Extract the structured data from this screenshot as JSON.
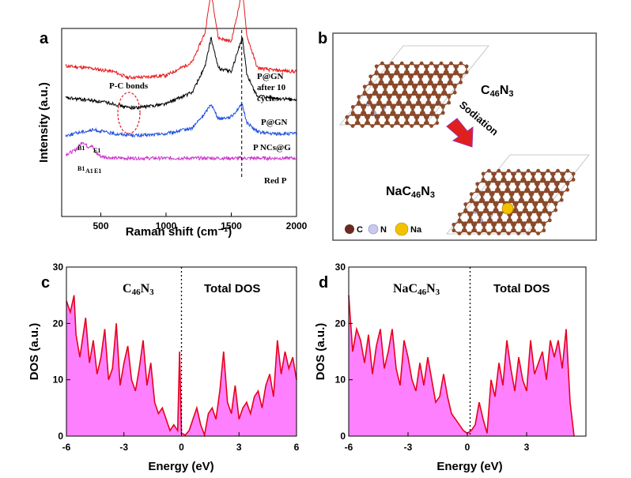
{
  "panels": {
    "a": "a",
    "b": "b",
    "c": "c",
    "d": "d"
  },
  "chart_data": [
    {
      "type": "line",
      "panel": "a",
      "xlabel": "Raman shift (cm⁻¹)",
      "ylabel": "Intensity (a.u.)",
      "xlim": [
        200,
        2000
      ],
      "xticks": [
        500,
        1000,
        1500,
        2000
      ],
      "dashed_vline_x": 1580,
      "annotations": [
        "P-C bonds",
        "B1",
        "E1",
        "B1",
        "A1",
        "E1"
      ],
      "series": [
        {
          "name": "P@GN after 10 cycles",
          "color": "#e31a1c",
          "x": [
            230,
            400,
            600,
            700,
            800,
            1000,
            1200,
            1300,
            1345,
            1400,
            1500,
            1560,
            1585,
            1620,
            1700,
            1800,
            2000
          ],
          "y": [
            0.8,
            0.79,
            0.77,
            0.74,
            0.74,
            0.75,
            0.82,
            0.98,
            1.2,
            0.95,
            0.93,
            1.12,
            1.2,
            0.96,
            0.79,
            0.78,
            0.77
          ]
        },
        {
          "name": "P@GN",
          "color": "#000000",
          "x": [
            230,
            400,
            600,
            700,
            800,
            1000,
            1200,
            1300,
            1345,
            1400,
            1500,
            1560,
            1585,
            1620,
            1700,
            1800,
            2000
          ],
          "y": [
            0.63,
            0.62,
            0.6,
            0.58,
            0.58,
            0.6,
            0.66,
            0.8,
            0.95,
            0.79,
            0.77,
            0.9,
            0.95,
            0.75,
            0.64,
            0.63,
            0.62
          ]
        },
        {
          "name": "P NCs@G",
          "color": "#1f4fe0",
          "x": [
            230,
            350,
            450,
            600,
            800,
            1000,
            1200,
            1300,
            1345,
            1400,
            1500,
            1560,
            1585,
            1620,
            1700,
            1800,
            2000
          ],
          "y": [
            0.43,
            0.45,
            0.46,
            0.44,
            0.43,
            0.44,
            0.47,
            0.55,
            0.6,
            0.52,
            0.53,
            0.58,
            0.59,
            0.5,
            0.45,
            0.44,
            0.44
          ]
        },
        {
          "name": "Red P",
          "color": "#cc33cc",
          "x": [
            230,
            300,
            340,
            360,
            400,
            430,
            460,
            500,
            600,
            800,
            1000,
            1200,
            1500,
            1800,
            2000
          ],
          "y": [
            0.33,
            0.35,
            0.38,
            0.4,
            0.37,
            0.38,
            0.34,
            0.32,
            0.31,
            0.31,
            0.31,
            0.31,
            0.31,
            0.31,
            0.31
          ]
        }
      ]
    },
    {
      "type": "area",
      "panel": "c",
      "legend": [
        "C46N3",
        "Total DOS"
      ],
      "xlabel": "Energy (eV)",
      "ylabel": "DOS (a.u.)",
      "xlim": [
        -6,
        6
      ],
      "ylim": [
        0,
        30
      ],
      "xticks": [
        -6,
        -3,
        0,
        3,
        6
      ],
      "yticks": [
        0,
        10,
        20,
        30
      ],
      "fill_color": "#ff80ff",
      "line_color": "#e8001c",
      "x": [
        -6.0,
        -5.8,
        -5.6,
        -5.5,
        -5.3,
        -5.0,
        -4.8,
        -4.6,
        -4.4,
        -4.2,
        -4.0,
        -3.8,
        -3.6,
        -3.4,
        -3.2,
        -3.0,
        -2.8,
        -2.6,
        -2.4,
        -2.2,
        -2.0,
        -1.8,
        -1.6,
        -1.4,
        -1.2,
        -1.0,
        -0.8,
        -0.6,
        -0.4,
        -0.2,
        -0.1,
        0.0,
        0.2,
        0.4,
        0.6,
        0.8,
        1.0,
        1.2,
        1.4,
        1.6,
        1.8,
        2.0,
        2.2,
        2.4,
        2.6,
        2.8,
        3.0,
        3.2,
        3.4,
        3.6,
        3.8,
        4.0,
        4.2,
        4.4,
        4.6,
        4.8,
        5.0,
        5.2,
        5.4,
        5.6,
        5.8,
        6.0
      ],
      "y": [
        24,
        22,
        25,
        18,
        14,
        21,
        13,
        17,
        11,
        14,
        19,
        10,
        12,
        20,
        9,
        13,
        16,
        10,
        8,
        12,
        17,
        9,
        13,
        6,
        4,
        5,
        3,
        1,
        2,
        1,
        15,
        0.5,
        0.2,
        1,
        3,
        5,
        2,
        0.2,
        4,
        5,
        3,
        8,
        15,
        6,
        4,
        9,
        3,
        5,
        6,
        4,
        7,
        8,
        5,
        9,
        11,
        7,
        17,
        11,
        15,
        12,
        14,
        10
      ]
    },
    {
      "type": "area",
      "panel": "d",
      "legend": [
        "NaC46N3",
        "Total DOS"
      ],
      "xlabel": "Energy (eV)",
      "ylabel": "DOS (a.u.)",
      "xlim": [
        -6,
        6
      ],
      "ylim": [
        0,
        30
      ],
      "xticks": [
        -6,
        -3,
        0,
        3
      ],
      "yticks": [
        0,
        10,
        20,
        30
      ],
      "fill_color": "#ff80ff",
      "line_color": "#e8001c",
      "x": [
        -6.0,
        -5.9,
        -5.8,
        -5.6,
        -5.4,
        -5.2,
        -5.0,
        -4.8,
        -4.6,
        -4.4,
        -4.2,
        -4.0,
        -3.8,
        -3.6,
        -3.4,
        -3.2,
        -3.0,
        -2.8,
        -2.6,
        -2.4,
        -2.2,
        -2.0,
        -1.8,
        -1.6,
        -1.4,
        -1.2,
        -1.0,
        -0.8,
        -0.6,
        -0.4,
        -0.2,
        0.0,
        0.2,
        0.4,
        0.6,
        0.8,
        1.0,
        1.2,
        1.4,
        1.6,
        1.8,
        2.0,
        2.2,
        2.4,
        2.6,
        2.8,
        3.0,
        3.2,
        3.4,
        3.6,
        3.8,
        4.0,
        4.2,
        4.4,
        4.6,
        4.8,
        5.0,
        5.2,
        5.4
      ],
      "y": [
        25,
        20,
        15,
        19,
        17,
        13,
        18,
        11,
        16,
        19,
        12,
        15,
        19,
        12,
        9,
        17,
        14,
        10,
        8,
        13,
        9,
        14,
        10,
        6,
        7,
        11,
        7,
        4,
        3,
        2,
        1,
        0.5,
        1,
        2,
        6,
        3,
        0.5,
        10,
        7,
        13,
        9,
        17,
        12,
        8,
        14,
        10,
        8,
        17,
        11,
        13,
        15,
        10,
        17,
        14,
        17,
        12,
        19,
        6,
        0
      ]
    }
  ],
  "labels_a": {
    "pgn_after_1": "P@GN",
    "pgn_after_2": "after 10",
    "pgn_after_3": "cycles",
    "pgn": "P@GN",
    "pncs": "P NCs@G",
    "redp": "Red P",
    "pc_bonds": "P-C bonds",
    "b1_top": "B1",
    "e1_top": "E1",
    "b1_bot": "B1",
    "a1_bot": "A1",
    "e1_bot": "E1"
  },
  "panel_b": {
    "top_formula_main": "C",
    "top_formula_sub": "46",
    "top_formula_main2": "N",
    "top_formula_sub2": "3",
    "sodiation": "Sodiation",
    "bot_formula_main": "NaC",
    "bot_formula_sub": "46",
    "bot_formula_main2": "N",
    "bot_formula_sub2": "3",
    "legend_c": "C",
    "legend_n": "N",
    "legend_na": "Na",
    "colors": {
      "carbon": "#8b4a2b",
      "nitrogen": "#b8b8e8",
      "sodium": "#f2c200",
      "arrow": "#e0201c",
      "frame": "#555555"
    }
  },
  "panel_c_labels": {
    "formula_main": "C",
    "formula_sub": "46",
    "formula_main2": "N",
    "formula_sub2": "3",
    "total": "Total DOS"
  },
  "panel_d_labels": {
    "formula_main": "NaC",
    "formula_sub": "46",
    "formula_main2": "N",
    "formula_sub2": "3",
    "total": "Total DOS"
  }
}
